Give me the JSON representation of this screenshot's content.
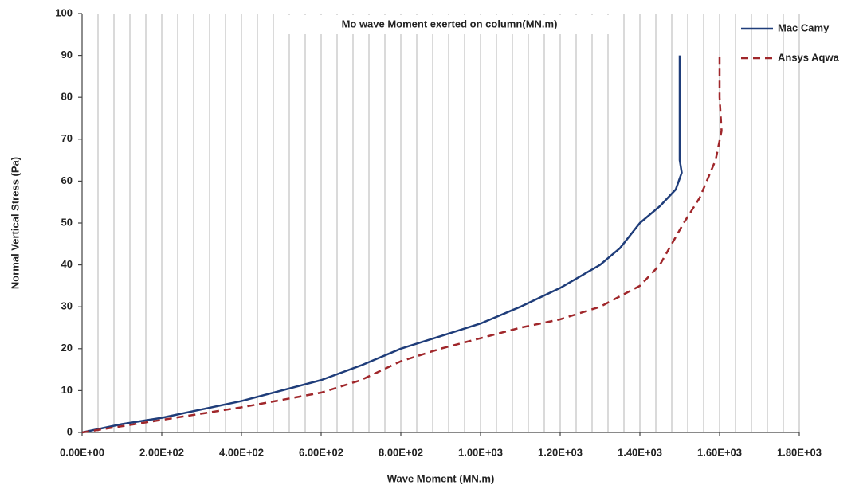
{
  "chart_data": {
    "type": "line",
    "title": "Mo wave Moment exerted on column(MN.m)",
    "x_label": "Wave Moment (MN.m)",
    "y_label": "Normal  Vertical Stress (Pa)",
    "xlim": [
      0,
      1800
    ],
    "ylim": [
      0,
      100
    ],
    "xticks": [
      {
        "value": 0,
        "label": "0.00E+00"
      },
      {
        "value": 200,
        "label": "2.00E+02"
      },
      {
        "value": 400,
        "label": "4.00E+02"
      },
      {
        "value": 600,
        "label": "6.00E+02"
      },
      {
        "value": 800,
        "label": "8.00E+02"
      },
      {
        "value": 1000,
        "label": "1.00E+03"
      },
      {
        "value": 1200,
        "label": "1.20E+03"
      },
      {
        "value": 1400,
        "label": "1.40E+03"
      },
      {
        "value": 1600,
        "label": "1.60E+03"
      },
      {
        "value": 1800,
        "label": "1.80E+03"
      }
    ],
    "x_minor_ticks": [
      40,
      80,
      120,
      160,
      240,
      280,
      320,
      360,
      440,
      480,
      520,
      560,
      640,
      680,
      720,
      760,
      840,
      880,
      920,
      960,
      1040,
      1080,
      1120,
      1160,
      1240,
      1280,
      1320,
      1360,
      1440,
      1480,
      1520,
      1560,
      1640,
      1680,
      1720,
      1760
    ],
    "yticks": [
      0,
      10,
      20,
      30,
      40,
      50,
      60,
      70,
      80,
      90,
      100
    ],
    "grid": "x",
    "legend": "top-right",
    "series": [
      {
        "name": "Mac Camy",
        "color": "#1f3d7a",
        "linestyle": "solid",
        "x": [
          0,
          100,
          200,
          400,
          600,
          700,
          800,
          900,
          1000,
          1100,
          1200,
          1300,
          1350,
          1400,
          1450,
          1490,
          1505,
          1500,
          1500,
          1500,
          1500
        ],
        "values": [
          0,
          2,
          3.5,
          7.5,
          12.5,
          16,
          20,
          23,
          26,
          30,
          34.5,
          40,
          44,
          50,
          54,
          58,
          62,
          65,
          70,
          80,
          90
        ]
      },
      {
        "name": "Ansys Aqwa",
        "color": "#a0272b",
        "linestyle": "dashed",
        "x": [
          0,
          100,
          200,
          400,
          600,
          700,
          800,
          900,
          1000,
          1100,
          1200,
          1300,
          1400,
          1450,
          1480,
          1510,
          1550,
          1590,
          1605,
          1600,
          1600
        ],
        "values": [
          0,
          1.5,
          3,
          6,
          9.5,
          12.5,
          17,
          20,
          22.5,
          25,
          27,
          30,
          35,
          40,
          45,
          50,
          56,
          65,
          72,
          80,
          90
        ]
      }
    ]
  }
}
